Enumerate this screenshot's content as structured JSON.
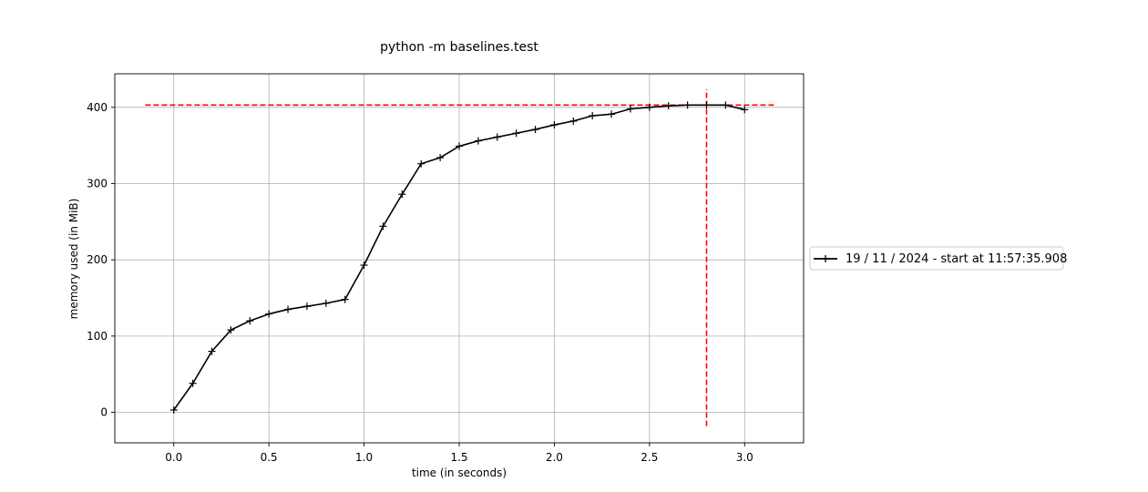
{
  "chart_data": {
    "type": "line",
    "title": "python -m baselines.test",
    "xlabel": "time (in seconds)",
    "ylabel": "memory used (in MiB)",
    "xlim": [
      -0.31,
      3.31
    ],
    "ylim": [
      -40,
      444
    ],
    "xticks": [
      0.0,
      0.5,
      1.0,
      1.5,
      2.0,
      2.5,
      3.0
    ],
    "xtick_labels": [
      "0.0",
      "0.5",
      "1.0",
      "1.5",
      "2.0",
      "2.5",
      "3.0"
    ],
    "yticks": [
      0,
      100,
      200,
      300,
      400
    ],
    "ytick_labels": [
      "0",
      "100",
      "200",
      "300",
      "400"
    ],
    "grid": true,
    "legend_position": "outside-right",
    "series": [
      {
        "name": "19 / 11 / 2024 - start at 11:57:35.908",
        "color": "#000000",
        "marker": "+",
        "x": [
          0.0,
          0.1,
          0.2,
          0.3,
          0.4,
          0.5,
          0.6,
          0.7,
          0.8,
          0.9,
          1.0,
          1.1,
          1.2,
          1.3,
          1.4,
          1.5,
          1.6,
          1.7,
          1.8,
          1.9,
          2.0,
          2.1,
          2.2,
          2.3,
          2.4,
          2.5,
          2.6,
          2.7,
          2.8,
          2.9,
          3.0
        ],
        "y": [
          3,
          38,
          80,
          108,
          120,
          129,
          135,
          139,
          143,
          148,
          193,
          244,
          286,
          326,
          334,
          349,
          356,
          361,
          366,
          371,
          377,
          382,
          389,
          391,
          398,
          400,
          402,
          403,
          403,
          403,
          397
        ]
      }
    ],
    "reference_lines": [
      {
        "orientation": "horizontal",
        "value": 403,
        "from": -0.15,
        "to": 3.16,
        "color": "#ff0000",
        "style": "dashed"
      },
      {
        "orientation": "vertical",
        "value": 2.8,
        "from": -18,
        "to": 424,
        "color": "#ff0000",
        "style": "dashed"
      }
    ]
  }
}
